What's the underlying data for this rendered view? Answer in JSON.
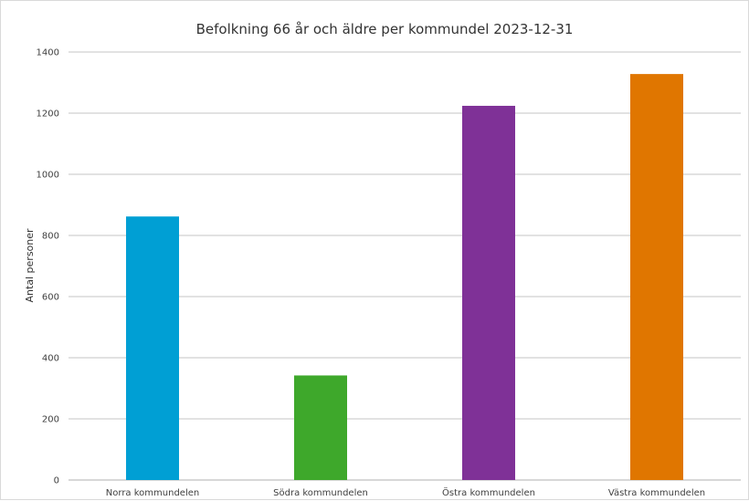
{
  "chart_data": {
    "type": "bar",
    "title": "Befolkning 66 år och äldre per kommundel 2023-12-31",
    "xlabel": "",
    "ylabel": "Antal personer",
    "categories": [
      "Norra kommundelen",
      "Södra kommundelen",
      "Östra kommundelen",
      "Västra kommundelen"
    ],
    "values": [
      862,
      342,
      1224,
      1328
    ],
    "bar_colors": [
      "#009fd4",
      "#3ea82b",
      "#7f3197",
      "#e07600"
    ],
    "ylim": [
      0,
      1400
    ],
    "yticks": [
      0,
      200,
      400,
      600,
      800,
      1000,
      1200,
      1400
    ],
    "grid": true,
    "legend": "none"
  }
}
